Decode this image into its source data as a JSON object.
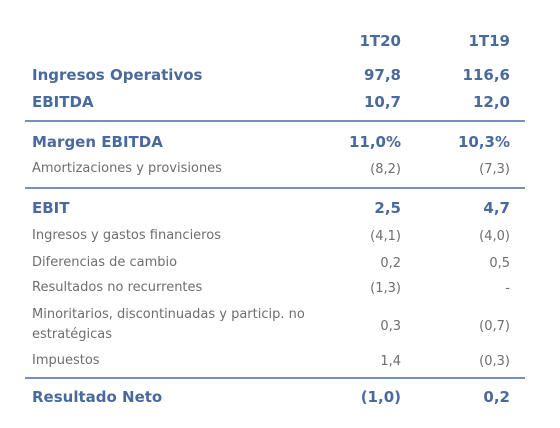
{
  "columns": [
    "1T20",
    "1T19"
  ],
  "rows": [
    {
      "label": "Ingresos Operativos",
      "v1": "97,8",
      "v2": "116,6",
      "bold": true
    },
    {
      "label": "EBITDA",
      "v1": "10,7",
      "v2": "12,0",
      "bold": true
    },
    {
      "label": "Margen EBITDA",
      "v1": "11,0%",
      "v2": "10,3%",
      "bold": true
    },
    {
      "label": "Amortizaciones y provisiones",
      "v1": "(8,2)",
      "v2": "(7,3)",
      "bold": false
    },
    {
      "label": "EBIT",
      "v1": "2,5",
      "v2": "4,7",
      "bold": true
    },
    {
      "label": "Ingresos y gastos financieros",
      "v1": "(4,1)",
      "v2": "(4,0)",
      "bold": false
    },
    {
      "label": "Diferencias de cambio",
      "v1": "0,2",
      "v2": "0,5",
      "bold": false
    },
    {
      "label": "Resultados no recurrentes",
      "v1": "(1,3)",
      "v2": "-",
      "bold": false
    },
    {
      "label": "Minoritarios, discontinuadas y particip. no estratégicas",
      "v1": "0,3",
      "v2": "(0,7)",
      "bold": false
    },
    {
      "label": "Impuestos",
      "v1": "1,4",
      "v2": "(0,3)",
      "bold": false
    },
    {
      "label": "Resultado Neto",
      "v1": "(1,0)",
      "v2": "0,2",
      "bold": true
    }
  ]
}
